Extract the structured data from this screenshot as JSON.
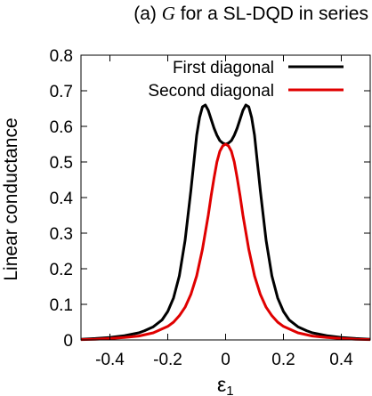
{
  "chart_data": {
    "type": "line",
    "title_prefix": "(a) ",
    "title_symbol": "G",
    "title_suffix": " for a SL-DQD in series",
    "xlabel": "ε",
    "xlabel_sub": "1",
    "ylabel": "Linear conductance",
    "xlim": [
      -0.5,
      0.5
    ],
    "ylim": [
      0,
      0.8
    ],
    "xticks": [
      -0.4,
      -0.2,
      0,
      0.2,
      0.4
    ],
    "xtick_labels": [
      "-0.4",
      "-0.2",
      "0",
      "0.2",
      "0.4"
    ],
    "yticks": [
      0,
      0.1,
      0.2,
      0.3,
      0.4,
      0.5,
      0.6,
      0.7,
      0.8
    ],
    "ytick_labels": [
      "0",
      "0.1",
      "0.2",
      "0.3",
      "0.4",
      "0.5",
      "0.6",
      "0.7",
      "0.8"
    ],
    "grid": false,
    "legend_position": "top-right",
    "series": [
      {
        "name": "First diagonal",
        "color": "#000000",
        "x": [
          -0.5,
          -0.45,
          -0.4,
          -0.35,
          -0.3,
          -0.28,
          -0.25,
          -0.22,
          -0.2,
          -0.18,
          -0.16,
          -0.14,
          -0.12,
          -0.1,
          -0.09,
          -0.08,
          -0.07,
          -0.06,
          -0.05,
          -0.04,
          -0.03,
          -0.02,
          -0.01,
          0,
          0.01,
          0.02,
          0.03,
          0.04,
          0.05,
          0.06,
          0.07,
          0.08,
          0.09,
          0.1,
          0.12,
          0.14,
          0.16,
          0.18,
          0.2,
          0.22,
          0.25,
          0.28,
          0.3,
          0.35,
          0.4,
          0.45,
          0.5
        ],
        "y": [
          0.002,
          0.004,
          0.007,
          0.012,
          0.02,
          0.026,
          0.037,
          0.056,
          0.08,
          0.118,
          0.18,
          0.28,
          0.42,
          0.575,
          0.625,
          0.655,
          0.66,
          0.645,
          0.62,
          0.595,
          0.575,
          0.56,
          0.553,
          0.55,
          0.553,
          0.56,
          0.575,
          0.595,
          0.62,
          0.645,
          0.66,
          0.655,
          0.625,
          0.575,
          0.42,
          0.28,
          0.18,
          0.118,
          0.08,
          0.056,
          0.037,
          0.026,
          0.02,
          0.012,
          0.007,
          0.004,
          0.002
        ]
      },
      {
        "name": "Second diagonal",
        "color": "#e00000",
        "x": [
          -0.5,
          -0.45,
          -0.4,
          -0.35,
          -0.3,
          -0.25,
          -0.2,
          -0.18,
          -0.16,
          -0.14,
          -0.12,
          -0.1,
          -0.08,
          -0.06,
          -0.05,
          -0.04,
          -0.03,
          -0.02,
          -0.01,
          0,
          0.01,
          0.02,
          0.03,
          0.04,
          0.05,
          0.06,
          0.08,
          0.1,
          0.12,
          0.14,
          0.16,
          0.18,
          0.2,
          0.25,
          0.3,
          0.35,
          0.4,
          0.45,
          0.5
        ],
        "y": [
          0.001,
          0.002,
          0.004,
          0.007,
          0.011,
          0.02,
          0.038,
          0.05,
          0.068,
          0.092,
          0.128,
          0.18,
          0.255,
          0.35,
          0.405,
          0.455,
          0.5,
          0.53,
          0.545,
          0.55,
          0.545,
          0.53,
          0.5,
          0.455,
          0.405,
          0.35,
          0.255,
          0.18,
          0.128,
          0.092,
          0.068,
          0.05,
          0.038,
          0.02,
          0.011,
          0.007,
          0.004,
          0.002,
          0.001
        ]
      }
    ]
  }
}
